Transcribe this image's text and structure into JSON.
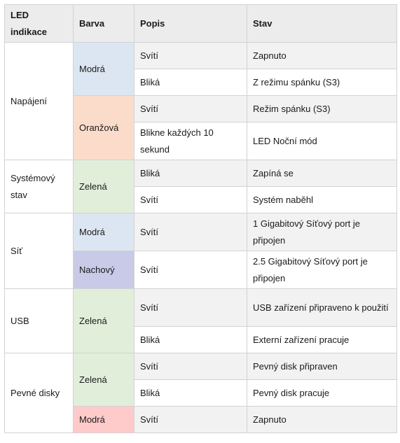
{
  "header": {
    "col1": "LED indikace",
    "col2": "Barva",
    "col3": "Popis",
    "col4": "Stav"
  },
  "colors": {
    "blue": "#dce6f2",
    "orange": "#fbdcca",
    "green": "#e1efda",
    "purple": "#c9c9e8",
    "pink": "#ffcaca",
    "row_alt": "#f2f2f2"
  },
  "groups": {
    "power": {
      "label": "Napájení",
      "blue_color": "Modrá",
      "orange_color": "Oranžová",
      "rows": [
        {
          "popis": "Svítí",
          "stav": "Zapnuto"
        },
        {
          "popis": "Bliká",
          "stav": "Z režimu spánku (S3)"
        },
        {
          "popis": "Svítí",
          "stav": "Režim spánku (S3)"
        },
        {
          "popis": "Blikne každých 10 sekund",
          "stav": "LED Noční mód"
        }
      ]
    },
    "system": {
      "label": "Systémový stav",
      "color": "Zelená",
      "rows": [
        {
          "popis": "Bliká",
          "stav": "Zapíná se"
        },
        {
          "popis": "Svítí",
          "stav": "Systém naběhl"
        }
      ]
    },
    "network": {
      "label": "Síť",
      "blue_color": "Modrá",
      "purple_color": "Nachový",
      "rows": [
        {
          "popis": "Svítí",
          "stav": "1 Gigabitový   Síťový port je připojen"
        },
        {
          "popis": "Svítí",
          "stav": "2.5 Gigabitový Síťový port je připojen"
        }
      ]
    },
    "usb": {
      "label": "USB",
      "color": "Zelená",
      "rows": [
        {
          "popis": "Svítí",
          "stav": "USB zařízení připraveno k použití"
        },
        {
          "popis": "Bliká",
          "stav": "Externí zařízení pracuje"
        }
      ]
    },
    "disks": {
      "label": "Pevné disky",
      "green_color": "Zelená",
      "pink_color": "Modrá",
      "rows": [
        {
          "popis": "Svítí",
          "stav": "Pevný disk připraven"
        },
        {
          "popis": "Bliká",
          "stav": "Pevný disk pracuje"
        },
        {
          "popis": "Svítí",
          "stav": "Zapnuto"
        }
      ]
    }
  }
}
